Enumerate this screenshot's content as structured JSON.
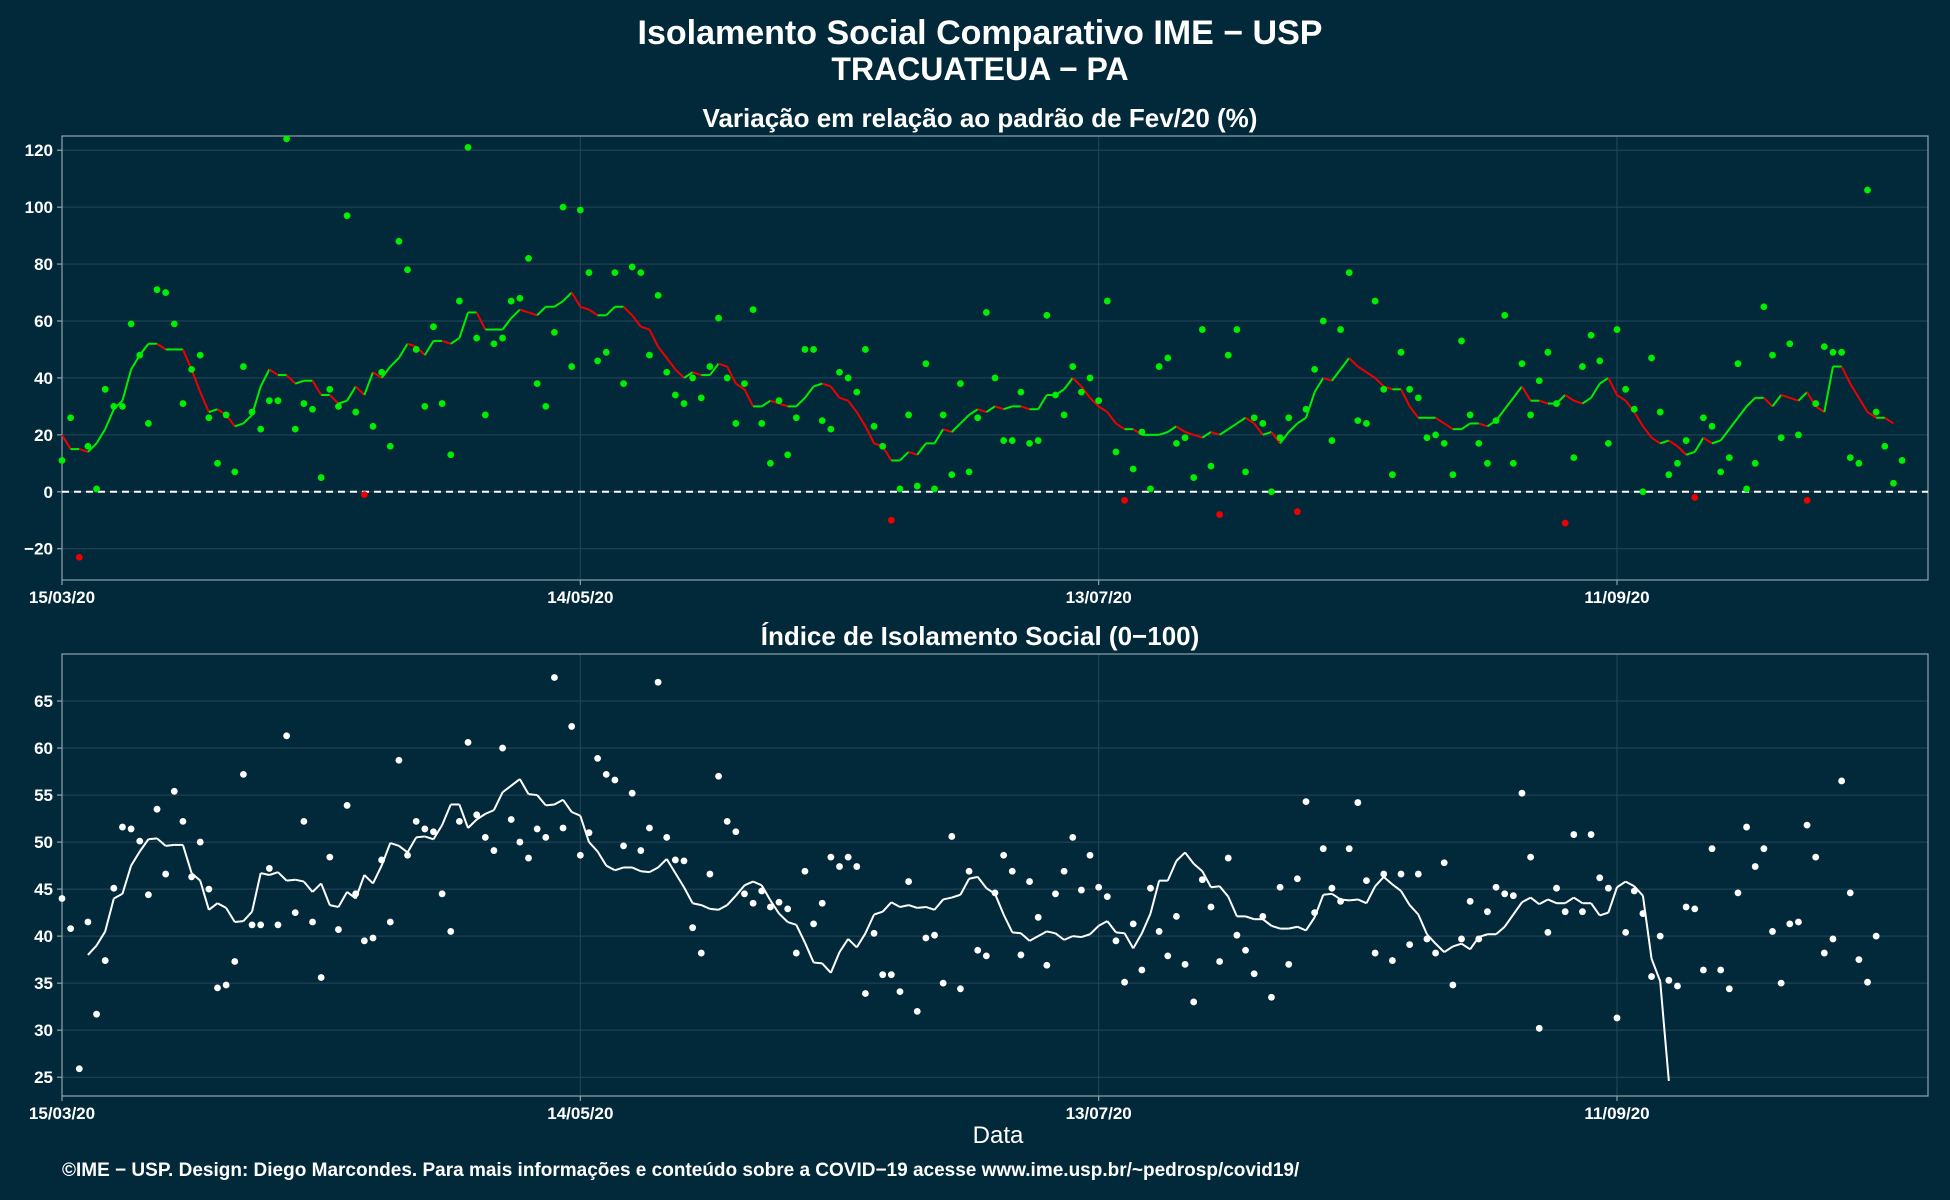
{
  "header": {
    "title": "Isolamento Social Comparativo IME − USP",
    "subtitle": "TRACUATEUA − PA"
  },
  "footer": {
    "credit": "©IME − USP. Design: Diego Marcondes. Para mais informações e conteúdo sobre a COVID−19 acesse www.ime.usp.br/~pedrosp/covid19/"
  },
  "colors": {
    "background": "#02293a",
    "panel_border": "#8fa3ab",
    "grid": "#24465a",
    "positive": "#00ee00",
    "negative": "#ee0000",
    "index": "#ffffff"
  },
  "chart_data": [
    {
      "type": "scatter",
      "title": "Variação em relação ao padrão de Fev/20 (%)",
      "xlabel": "",
      "x_ticks": [
        "15/03/20",
        "14/05/20",
        "13/07/20",
        "11/09/20"
      ],
      "x_tick_days": [
        0,
        60,
        120,
        180
      ],
      "yticks": [
        -20,
        0,
        20,
        40,
        60,
        80,
        100,
        120
      ],
      "ylim": [
        -31,
        125
      ],
      "xlim": [
        0,
        216
      ],
      "reference_line": 0,
      "series": [
        {
          "role": "daily",
          "values": [
            11,
            26,
            -23,
            16,
            1,
            36,
            30,
            30,
            59,
            48,
            24,
            71,
            70,
            59,
            31,
            43,
            48,
            26,
            10,
            27,
            7,
            44,
            28,
            22,
            32,
            32,
            124,
            22,
            31,
            29,
            5,
            36,
            30,
            97,
            28,
            -1,
            23,
            42,
            16,
            88,
            78,
            50,
            30,
            58,
            31,
            13,
            67,
            121,
            54,
            27,
            52,
            54,
            67,
            68,
            82,
            38,
            30,
            56,
            100,
            44,
            99,
            77,
            46,
            49,
            77,
            38,
            79,
            77,
            48,
            69,
            42,
            34,
            31,
            40,
            33,
            44,
            61,
            40,
            24,
            38,
            64,
            24,
            10,
            32,
            13,
            26,
            50,
            50,
            25,
            22,
            42,
            40,
            35,
            50,
            23,
            16,
            -10,
            1,
            27,
            2,
            45,
            1,
            27,
            6,
            38,
            7,
            26,
            63,
            40,
            18,
            18,
            35,
            17,
            18,
            62,
            34,
            27,
            44,
            35,
            40,
            32,
            67,
            14,
            -3,
            8,
            21,
            1,
            44,
            47,
            17,
            19,
            5,
            57,
            9,
            -8,
            48,
            57,
            7,
            26,
            24,
            0,
            19,
            26,
            -7,
            29,
            43,
            60,
            18,
            57,
            77,
            25,
            24,
            67,
            36,
            6,
            49,
            36,
            33,
            19,
            20,
            17,
            6,
            53,
            27,
            17,
            10,
            25,
            62,
            10,
            45,
            27,
            39,
            49,
            31,
            -11,
            12,
            44,
            55,
            46,
            17,
            57,
            36,
            29,
            0,
            47,
            28,
            6,
            10,
            18,
            -2,
            26,
            23,
            7,
            12,
            45,
            1,
            10,
            65,
            48,
            19,
            52,
            20,
            -3,
            31,
            51,
            49,
            49,
            12,
            10,
            106,
            28,
            16,
            3,
            11
          ]
        },
        {
          "role": "moving_average",
          "values": [
            20,
            15,
            15,
            14,
            17,
            22,
            29,
            32,
            43,
            48,
            52,
            52,
            50,
            50,
            50,
            43,
            35,
            28,
            29,
            27,
            23,
            24,
            27,
            37,
            43,
            41,
            41,
            38,
            39,
            39,
            34,
            34,
            31,
            32,
            37,
            34,
            42,
            40,
            44,
            47,
            52,
            51,
            48,
            53,
            53,
            52,
            54,
            63,
            63,
            57,
            57,
            57,
            61,
            64,
            63,
            62,
            65,
            65,
            67,
            70,
            65,
            64,
            62,
            62,
            65,
            65,
            62,
            58,
            57,
            51,
            47,
            43,
            40,
            42,
            41,
            41,
            45,
            44,
            38,
            36,
            30,
            30,
            32,
            31,
            30,
            30,
            33,
            37,
            38,
            37,
            33,
            32,
            28,
            23,
            17,
            16,
            11,
            11,
            14,
            13,
            17,
            17,
            22,
            21,
            24,
            27,
            29,
            28,
            30,
            29,
            30,
            30,
            29,
            29,
            34,
            34,
            36,
            40,
            37,
            33,
            30,
            28,
            24,
            22,
            22,
            20,
            20,
            20,
            21,
            23,
            21,
            20,
            19,
            21,
            20,
            22,
            24,
            26,
            24,
            20,
            21,
            17,
            21,
            24,
            26,
            35,
            40,
            39,
            43,
            47,
            44,
            42,
            40,
            37,
            36,
            36,
            30,
            26,
            26,
            26,
            24,
            22,
            22,
            24,
            24,
            23,
            25,
            29,
            33,
            37,
            32,
            32,
            31,
            31,
            34,
            32,
            31,
            33,
            38,
            40,
            34,
            32,
            28,
            23,
            19,
            17,
            18,
            16,
            13,
            14,
            19,
            17,
            18,
            22,
            26,
            30,
            33,
            33,
            30,
            34,
            33,
            32,
            35,
            30,
            28,
            44,
            44,
            38,
            33,
            28,
            26,
            26,
            24
          ]
        }
      ]
    },
    {
      "type": "scatter",
      "title": "Índice de Isolamento Social (0−100)",
      "xlabel": "Data",
      "x_ticks": [
        "15/03/20",
        "14/05/20",
        "13/07/20",
        "11/09/20"
      ],
      "x_tick_days": [
        0,
        60,
        120,
        180
      ],
      "yticks": [
        25,
        30,
        35,
        40,
        45,
        50,
        55,
        60,
        65
      ],
      "ylim": [
        23,
        70
      ],
      "xlim": [
        0,
        216
      ],
      "series": [
        {
          "role": "daily",
          "values": [
            44,
            40.8,
            25.9,
            41.5,
            31.7,
            37.4,
            45.1,
            51.6,
            51.4,
            50.1,
            44.4,
            53.5,
            46.6,
            55.4,
            52.2,
            46.3,
            50,
            45,
            34.5,
            34.8,
            37.3,
            57.2,
            41.2,
            41.2,
            47.2,
            41.2,
            61.3,
            42.5,
            52.2,
            41.5,
            35.6,
            48.4,
            40.7,
            53.9,
            44.5,
            39.5,
            39.8,
            48.1,
            41.5,
            58.7,
            48.6,
            52.2,
            51.4,
            51.1,
            44.5,
            40.5,
            52.2,
            60.6,
            52.9,
            50.5,
            49.1,
            60,
            52.4,
            50,
            48.3,
            51.4,
            50.5,
            67.5,
            51.5,
            62.3,
            48.6,
            51,
            58.9,
            57.2,
            56.6,
            49.6,
            55.2,
            49.1,
            51.5,
            67,
            50.5,
            48.1,
            48,
            40.9,
            38.2,
            46.6,
            57,
            52.2,
            51.1,
            44.5,
            43.5,
            44.8,
            43.1,
            43.6,
            42.9,
            38.2,
            46.9,
            41.3,
            43.5,
            48.4,
            47.4,
            48.4,
            47.4,
            33.9,
            40.3,
            35.9,
            35.9,
            34.1,
            45.8,
            32,
            39.8,
            40.1,
            35,
            50.6,
            34.4,
            46.9,
            38.5,
            37.9,
            44.6,
            48.6,
            46.9,
            38,
            45.8,
            42,
            36.9,
            44.5,
            46.9,
            50.5,
            44.9,
            48.6,
            45.2,
            44.2,
            39.5,
            35.1,
            41.3,
            36.4,
            45.1,
            40.5,
            37.9,
            42.1,
            37,
            33,
            46,
            43.1,
            37.3,
            48.3,
            40.1,
            38.5,
            36,
            42.1,
            33.5,
            45.2,
            37,
            46.1,
            54.3,
            42.5,
            49.3,
            45.1,
            43.7,
            49.3,
            54.2,
            45.9,
            38.2,
            46.6,
            37.4,
            46.6,
            39.1,
            46.6,
            39.7,
            38.2,
            47.8,
            34.8,
            39.7,
            43.7,
            39.7,
            42.6,
            45.2,
            44.5,
            44.3,
            55.2,
            48.4,
            30.2,
            40.4,
            45.1,
            42.6,
            50.8,
            42.6,
            50.8,
            46.2,
            45.1,
            31.3,
            40.4,
            44.8,
            42.4,
            35.7,
            40,
            35.3,
            34.7,
            43.1,
            42.9,
            36.4,
            49.3,
            36.4,
            34.4,
            44.6,
            51.6,
            47.4,
            49.3,
            40.5,
            35,
            41.3,
            41.5,
            51.8,
            48.4,
            38.2,
            39.7,
            56.5,
            44.6,
            37.5,
            35.1,
            40
          ]
        },
        {
          "role": "moving_average",
          "start_day": 3,
          "values": [
            38,
            39,
            40.5,
            44,
            44.5,
            47.5,
            49,
            50.3,
            50.4,
            49.6,
            49.7,
            49.7,
            46.7,
            45.9,
            42.8,
            43.5,
            43,
            41.5,
            41.6,
            42.6,
            46.7,
            46.5,
            46.8,
            45.9,
            46,
            45.8,
            44.7,
            45.6,
            43.3,
            43.1,
            44.7,
            44,
            46.5,
            45.6,
            47.5,
            49.9,
            49.6,
            48.9,
            50.5,
            50.6,
            50.3,
            51.8,
            54,
            54,
            51.5,
            52.4,
            53,
            53.4,
            55.3,
            56,
            56.7,
            55.1,
            55,
            53.9,
            54,
            54.5,
            53.2,
            52.8,
            50,
            49,
            47.5,
            47,
            47.3,
            47.3,
            46.9,
            46.8,
            47.3,
            48.2,
            46.7,
            45.2,
            43.5,
            43.3,
            42.9,
            42.8,
            43.3,
            44.3,
            45.4,
            45.8,
            45.4,
            43.8,
            42.4,
            41.5,
            41.2,
            39.3,
            37.2,
            37.1,
            36.1,
            38.3,
            39.7,
            38.8,
            40.3,
            42.3,
            42.6,
            43.6,
            43.1,
            43.3,
            43,
            43.1,
            42.8,
            43.9,
            44.1,
            44.4,
            46.1,
            46.3,
            45.1,
            44.5,
            42.3,
            40.4,
            40.3,
            39.5,
            40,
            40.5,
            40.3,
            39.6,
            40,
            39.9,
            40.2,
            41.1,
            41.6,
            40.4,
            40.3,
            38.7,
            40.3,
            42.4,
            45.9,
            45.9,
            48,
            48.9,
            47.7,
            46.9,
            45.2,
            45.3,
            44.2,
            42.1,
            42.1,
            41.8,
            41.8,
            41.1,
            40.8,
            40.8,
            41,
            40.6,
            42,
            44.4,
            44.5,
            43.9,
            43.8,
            43.9,
            43.5,
            45.3,
            46.3,
            45.5,
            44.8,
            43.3,
            42.3,
            40.2,
            39.2,
            38.3,
            38.9,
            39.2,
            38.6,
            39.9,
            40.2,
            40.2,
            41,
            42.3,
            43.6,
            44.1,
            43.4,
            43.9,
            43.5,
            43.5,
            44.1,
            43.5,
            43.5,
            42.2,
            42.5,
            45.2,
            45.8,
            45.3,
            44.3,
            37.6,
            35.2,
            24.6
          ]
        }
      ]
    }
  ]
}
